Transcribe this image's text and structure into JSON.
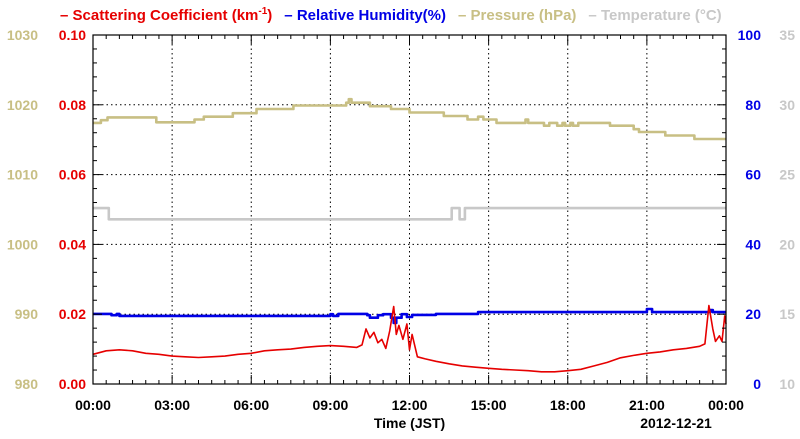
{
  "chart_data": {
    "type": "line",
    "legend": {
      "placement": "top",
      "items": [
        {
          "key": "scatter",
          "label": "Scattering Coefficient (km",
          "sup": "-1",
          "suffix": ")",
          "color": "#e60000"
        },
        {
          "key": "rh",
          "label": "Relative Humidity(%)",
          "color": "#0000e6"
        },
        {
          "key": "pressure",
          "label": "Pressure (hPa)",
          "color": "#c8bf84"
        },
        {
          "key": "temp",
          "label": "Temperature (°C)",
          "color": "#c8c8c8"
        }
      ]
    },
    "xlabel": "Time (JST)",
    "date_label": "2012-12-21",
    "x_ticks": [
      "00:00",
      "03:00",
      "06:00",
      "09:00",
      "12:00",
      "15:00",
      "18:00",
      "21:00",
      "00:00"
    ],
    "xlim_hours": [
      0,
      24
    ],
    "grid": true,
    "axes": {
      "pressure": {
        "ticks": [
          "980",
          "990",
          "1000",
          "1010",
          "1020",
          "1030"
        ],
        "lim": [
          980,
          1030
        ],
        "color": "#c8bf84"
      },
      "scatter": {
        "ticks": [
          "0.00",
          "0.02",
          "0.04",
          "0.06",
          "0.08",
          "0.10"
        ],
        "lim": [
          0,
          0.1
        ],
        "color": "#e60000"
      },
      "rh": {
        "ticks": [
          "0",
          "20",
          "40",
          "60",
          "80",
          "100"
        ],
        "lim": [
          0,
          100
        ],
        "color": "#0000e6"
      },
      "temp": {
        "ticks": [
          "10",
          "15",
          "20",
          "25",
          "30",
          "35"
        ],
        "lim": [
          10,
          35
        ],
        "color": "#c8c8c8"
      }
    },
    "series": [
      {
        "name": "Pressure (hPa)",
        "axis": "pressure",
        "color": "#c8bf84",
        "step": true,
        "points": [
          [
            0,
            1017.4
          ],
          [
            0.3,
            1017.8
          ],
          [
            0.55,
            1018.2
          ],
          [
            2.4,
            1017.5
          ],
          [
            3.85,
            1017.9
          ],
          [
            4.2,
            1018.3
          ],
          [
            5.3,
            1018.8
          ],
          [
            6.2,
            1019.4
          ],
          [
            7.6,
            1019.9
          ],
          [
            9.6,
            1020.3
          ],
          [
            9.7,
            1020.8
          ],
          [
            9.8,
            1020.3
          ],
          [
            10.5,
            1019.8
          ],
          [
            11.3,
            1019.4
          ],
          [
            12.0,
            1018.9
          ],
          [
            13.3,
            1018.4
          ],
          [
            14.2,
            1017.9
          ],
          [
            14.6,
            1018.3
          ],
          [
            14.8,
            1017.9
          ],
          [
            15.3,
            1017.4
          ],
          [
            16.4,
            1017.9
          ],
          [
            16.5,
            1017.4
          ],
          [
            17.1,
            1017.0
          ],
          [
            17.3,
            1017.4
          ],
          [
            17.6,
            1017.0
          ],
          [
            17.8,
            1017.4
          ],
          [
            17.9,
            1017.0
          ],
          [
            18.1,
            1017.4
          ],
          [
            18.2,
            1017.0
          ],
          [
            18.4,
            1017.4
          ],
          [
            19.6,
            1017.0
          ],
          [
            20.5,
            1016.5
          ],
          [
            20.7,
            1016.1
          ],
          [
            21.7,
            1015.6
          ],
          [
            22.8,
            1015.1
          ],
          [
            23.7,
            1015.1
          ]
        ]
      },
      {
        "name": "Temperature (°C)",
        "axis": "temp",
        "color": "#c8c8c8",
        "step": true,
        "points": [
          [
            0,
            22.6
          ],
          [
            0.55,
            22.6
          ],
          [
            0.6,
            21.8
          ],
          [
            13.5,
            21.8
          ],
          [
            13.6,
            22.6
          ],
          [
            13.8,
            22.6
          ],
          [
            13.9,
            21.8
          ],
          [
            14.05,
            21.8
          ],
          [
            14.1,
            22.6
          ],
          [
            24,
            22.6
          ]
        ]
      },
      {
        "name": "Relative Humidity(%)",
        "axis": "rh",
        "color": "#0000e6",
        "step": true,
        "points": [
          [
            0,
            20.1
          ],
          [
            0.7,
            19.7
          ],
          [
            0.9,
            20.1
          ],
          [
            1.0,
            19.5
          ],
          [
            8.9,
            19.5
          ],
          [
            9.0,
            20.0
          ],
          [
            9.1,
            19.5
          ],
          [
            9.3,
            20.1
          ],
          [
            10.4,
            19.7
          ],
          [
            10.5,
            19.0
          ],
          [
            10.8,
            19.7
          ],
          [
            11.0,
            20.0
          ],
          [
            11.3,
            19.0
          ],
          [
            11.4,
            17.5
          ],
          [
            11.5,
            19.0
          ],
          [
            11.7,
            20.0
          ],
          [
            11.9,
            19.2
          ],
          [
            12.1,
            19.8
          ],
          [
            13.0,
            20.1
          ],
          [
            14.6,
            20.6
          ],
          [
            20.9,
            20.6
          ],
          [
            21.0,
            21.5
          ],
          [
            21.2,
            20.6
          ],
          [
            23.3,
            20.6
          ],
          [
            23.4,
            21.2
          ],
          [
            23.5,
            20.6
          ],
          [
            24,
            20.6
          ]
        ]
      },
      {
        "name": "Scattering Coefficient (km-1)",
        "axis": "scatter",
        "color": "#e60000",
        "step": false,
        "points": [
          [
            0,
            0.0085
          ],
          [
            0.5,
            0.0095
          ],
          [
            1.0,
            0.0098
          ],
          [
            1.5,
            0.0095
          ],
          [
            2.0,
            0.0088
          ],
          [
            2.5,
            0.0085
          ],
          [
            3.0,
            0.008
          ],
          [
            3.5,
            0.0078
          ],
          [
            4.0,
            0.0076
          ],
          [
            4.5,
            0.0078
          ],
          [
            5.0,
            0.008
          ],
          [
            5.5,
            0.0085
          ],
          [
            6.0,
            0.0088
          ],
          [
            6.5,
            0.0095
          ],
          [
            7.0,
            0.0098
          ],
          [
            7.5,
            0.01
          ],
          [
            8.0,
            0.0105
          ],
          [
            8.5,
            0.0108
          ],
          [
            9.0,
            0.011
          ],
          [
            9.5,
            0.0108
          ],
          [
            10.0,
            0.0105
          ],
          [
            10.2,
            0.0112
          ],
          [
            10.35,
            0.0158
          ],
          [
            10.5,
            0.0132
          ],
          [
            10.65,
            0.0148
          ],
          [
            10.8,
            0.0118
          ],
          [
            10.95,
            0.0128
          ],
          [
            11.1,
            0.0102
          ],
          [
            11.25,
            0.0152
          ],
          [
            11.4,
            0.0222
          ],
          [
            11.5,
            0.0142
          ],
          [
            11.6,
            0.0168
          ],
          [
            11.75,
            0.0128
          ],
          [
            11.9,
            0.0172
          ],
          [
            12.0,
            0.0098
          ],
          [
            12.1,
            0.0142
          ],
          [
            12.3,
            0.0078
          ],
          [
            12.6,
            0.0072
          ],
          [
            13.0,
            0.0065
          ],
          [
            13.5,
            0.0058
          ],
          [
            14.0,
            0.0052
          ],
          [
            14.5,
            0.0048
          ],
          [
            15.0,
            0.0045
          ],
          [
            15.5,
            0.0042
          ],
          [
            16.0,
            0.004
          ],
          [
            16.5,
            0.0038
          ],
          [
            17.0,
            0.0035
          ],
          [
            17.5,
            0.0035
          ],
          [
            18.0,
            0.0038
          ],
          [
            18.5,
            0.0042
          ],
          [
            19.0,
            0.0052
          ],
          [
            19.5,
            0.0062
          ],
          [
            20.0,
            0.0075
          ],
          [
            20.5,
            0.0082
          ],
          [
            21.0,
            0.0088
          ],
          [
            21.5,
            0.0092
          ],
          [
            22.0,
            0.0098
          ],
          [
            22.5,
            0.0102
          ],
          [
            23.0,
            0.0108
          ],
          [
            23.2,
            0.0115
          ],
          [
            23.35,
            0.0225
          ],
          [
            23.5,
            0.0158
          ],
          [
            23.6,
            0.0122
          ],
          [
            23.75,
            0.0138
          ],
          [
            23.85,
            0.0122
          ],
          [
            23.95,
            0.0195
          ],
          [
            24,
            0.0172
          ]
        ]
      }
    ]
  }
}
